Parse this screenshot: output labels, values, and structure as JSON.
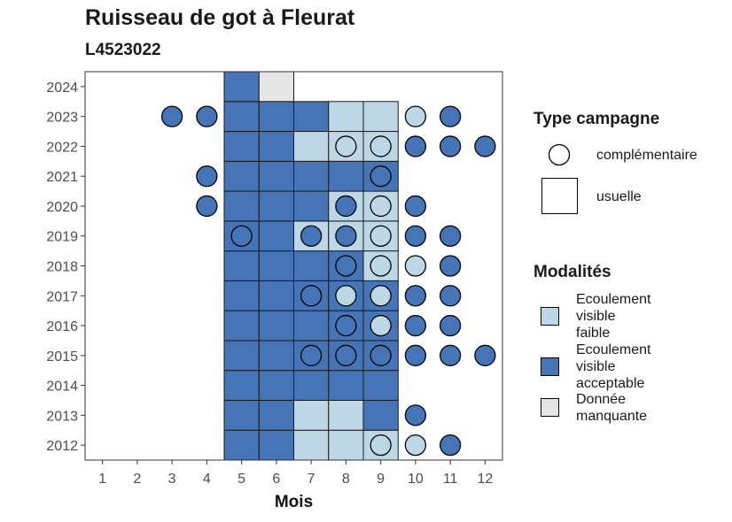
{
  "title": "Ruisseau de got à Fleurat",
  "subtitle": "L4523022",
  "chart_data": {
    "type": "heatmap",
    "xlabel": "Mois",
    "ylabel": "",
    "x_ticks": [
      1,
      2,
      3,
      4,
      5,
      6,
      7,
      8,
      9,
      10,
      11,
      12
    ],
    "y_ticks": [
      2012,
      2013,
      2014,
      2015,
      2016,
      2017,
      2018,
      2019,
      2020,
      2021,
      2022,
      2023,
      2024
    ],
    "xlim": [
      0.5,
      12.5
    ],
    "ylim": [
      2011.5,
      2024.5
    ],
    "legend_position": "right",
    "categories": [
      "Ecoulement visible faible",
      "Ecoulement visible acceptable",
      "Donnée manquante"
    ],
    "colors": {
      "Ecoulement visible faible": "#bdd7e7",
      "Ecoulement visible acceptable": "#4574b7",
      "Donnée manquante": "#e5e5e5"
    },
    "usuelle": [
      {
        "year": 2012,
        "values": {
          "5": "Ecoulement visible acceptable",
          "6": "Ecoulement visible acceptable",
          "7": "Ecoulement visible faible",
          "8": "Ecoulement visible faible",
          "9": "Ecoulement visible faible"
        }
      },
      {
        "year": 2013,
        "values": {
          "5": "Ecoulement visible acceptable",
          "6": "Ecoulement visible acceptable",
          "7": "Ecoulement visible faible",
          "8": "Ecoulement visible faible",
          "9": "Ecoulement visible acceptable"
        }
      },
      {
        "year": 2014,
        "values": {
          "5": "Ecoulement visible acceptable",
          "6": "Ecoulement visible acceptable",
          "7": "Ecoulement visible acceptable",
          "8": "Ecoulement visible acceptable",
          "9": "Ecoulement visible acceptable"
        }
      },
      {
        "year": 2015,
        "values": {
          "5": "Ecoulement visible acceptable",
          "6": "Ecoulement visible acceptable",
          "7": "Ecoulement visible acceptable",
          "8": "Ecoulement visible acceptable",
          "9": "Ecoulement visible acceptable"
        }
      },
      {
        "year": 2016,
        "values": {
          "5": "Ecoulement visible acceptable",
          "6": "Ecoulement visible acceptable",
          "7": "Ecoulement visible acceptable",
          "8": "Ecoulement visible acceptable",
          "9": "Ecoulement visible acceptable"
        }
      },
      {
        "year": 2017,
        "values": {
          "5": "Ecoulement visible acceptable",
          "6": "Ecoulement visible acceptable",
          "7": "Ecoulement visible acceptable",
          "8": "Ecoulement visible acceptable",
          "9": "Ecoulement visible acceptable"
        }
      },
      {
        "year": 2018,
        "values": {
          "5": "Ecoulement visible acceptable",
          "6": "Ecoulement visible acceptable",
          "7": "Ecoulement visible acceptable",
          "8": "Ecoulement visible acceptable",
          "9": "Ecoulement visible faible"
        }
      },
      {
        "year": 2019,
        "values": {
          "5": "Ecoulement visible acceptable",
          "6": "Ecoulement visible acceptable",
          "7": "Ecoulement visible faible",
          "8": "Ecoulement visible faible",
          "9": "Ecoulement visible faible"
        }
      },
      {
        "year": 2020,
        "values": {
          "5": "Ecoulement visible acceptable",
          "6": "Ecoulement visible acceptable",
          "7": "Ecoulement visible acceptable",
          "8": "Ecoulement visible faible",
          "9": "Ecoulement visible faible"
        }
      },
      {
        "year": 2021,
        "values": {
          "5": "Ecoulement visible acceptable",
          "6": "Ecoulement visible acceptable",
          "7": "Ecoulement visible acceptable",
          "8": "Ecoulement visible acceptable",
          "9": "Ecoulement visible acceptable"
        }
      },
      {
        "year": 2022,
        "values": {
          "5": "Ecoulement visible acceptable",
          "6": "Ecoulement visible acceptable",
          "7": "Ecoulement visible faible",
          "8": "Ecoulement visible faible",
          "9": "Ecoulement visible faible"
        }
      },
      {
        "year": 2023,
        "values": {
          "5": "Ecoulement visible acceptable",
          "6": "Ecoulement visible acceptable",
          "7": "Ecoulement visible acceptable",
          "8": "Ecoulement visible faible",
          "9": "Ecoulement visible faible"
        }
      },
      {
        "year": 2024,
        "values": {
          "5": "Ecoulement visible acceptable",
          "6": "Donnée manquante"
        }
      }
    ],
    "complementaire": [
      {
        "year": 2012,
        "values": {
          "9": "Ecoulement visible faible",
          "10": "Ecoulement visible faible",
          "11": "Ecoulement visible acceptable"
        }
      },
      {
        "year": 2013,
        "values": {
          "10": "Ecoulement visible acceptable"
        }
      },
      {
        "year": 2015,
        "values": {
          "7": "Ecoulement visible acceptable",
          "8": "Ecoulement visible acceptable",
          "9": "Ecoulement visible acceptable",
          "10": "Ecoulement visible acceptable",
          "11": "Ecoulement visible acceptable",
          "12": "Ecoulement visible acceptable"
        }
      },
      {
        "year": 2016,
        "values": {
          "8": "Ecoulement visible acceptable",
          "9": "Ecoulement visible faible",
          "10": "Ecoulement visible acceptable",
          "11": "Ecoulement visible acceptable"
        }
      },
      {
        "year": 2017,
        "values": {
          "7": "Ecoulement visible acceptable",
          "8": "Ecoulement visible faible",
          "9": "Ecoulement visible faible",
          "10": "Ecoulement visible acceptable",
          "11": "Ecoulement visible acceptable"
        }
      },
      {
        "year": 2018,
        "values": {
          "8": "Ecoulement visible acceptable",
          "9": "Ecoulement visible faible",
          "10": "Ecoulement visible faible",
          "11": "Ecoulement visible acceptable"
        }
      },
      {
        "year": 2019,
        "values": {
          "5": "Ecoulement visible acceptable",
          "7": "Ecoulement visible acceptable",
          "8": "Ecoulement visible acceptable",
          "9": "Ecoulement visible faible",
          "10": "Ecoulement visible acceptable",
          "11": "Ecoulement visible acceptable"
        }
      },
      {
        "year": 2020,
        "values": {
          "4": "Ecoulement visible acceptable",
          "8": "Ecoulement visible acceptable",
          "9": "Ecoulement visible faible",
          "10": "Ecoulement visible acceptable"
        }
      },
      {
        "year": 2021,
        "values": {
          "4": "Ecoulement visible acceptable",
          "9": "Ecoulement visible acceptable"
        }
      },
      {
        "year": 2022,
        "values": {
          "8": "Ecoulement visible faible",
          "9": "Ecoulement visible faible",
          "10": "Ecoulement visible acceptable",
          "11": "Ecoulement visible acceptable",
          "12": "Ecoulement visible acceptable"
        }
      },
      {
        "year": 2023,
        "values": {
          "3": "Ecoulement visible acceptable",
          "4": "Ecoulement visible acceptable",
          "10": "Ecoulement visible faible",
          "11": "Ecoulement visible acceptable"
        }
      }
    ]
  },
  "legend": {
    "type_title": "Type campagne",
    "type_items": [
      "complémentaire",
      "usuelle"
    ],
    "modalites_title": "Modalités",
    "modalites_items": [
      [
        "Ecoulement",
        "visible",
        "faible"
      ],
      [
        "Ecoulement",
        "visible",
        "acceptable"
      ],
      [
        "Donnée",
        "manquante"
      ]
    ]
  }
}
